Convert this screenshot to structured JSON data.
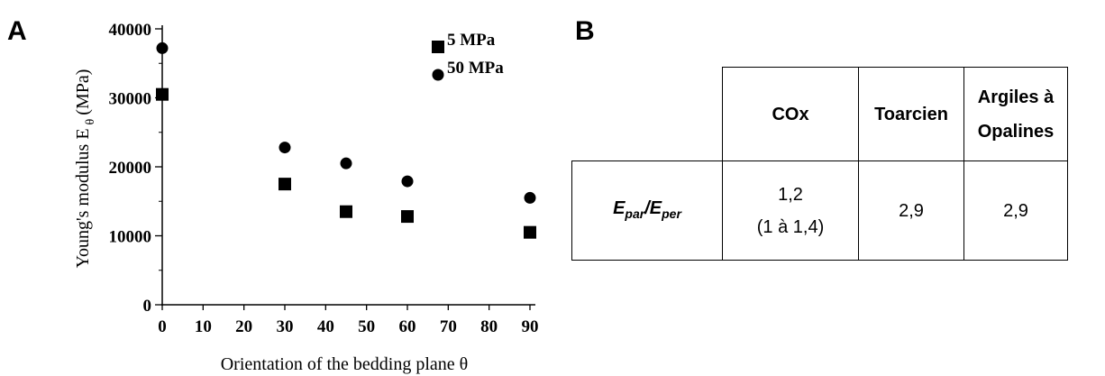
{
  "panels": {
    "a": "A",
    "b": "B"
  },
  "chart_data": {
    "type": "scatter",
    "ylabel_main": "Young's modulus E",
    "ylabel_sub": "θ",
    "ylabel_unit": "(MPa)",
    "xlabel": "Orientation of the bedding plane θ",
    "xlim": [
      0,
      90
    ],
    "ylim": [
      0,
      40000
    ],
    "x_ticks": [
      "0",
      "10",
      "20",
      "30",
      "40",
      "50",
      "60",
      "70",
      "80",
      "90"
    ],
    "y_ticks": [
      "0",
      "10000",
      "20000",
      "30000",
      "40000"
    ],
    "grid": false,
    "legend_position": "top-right",
    "series": [
      {
        "name": "5 MPa",
        "marker": "square",
        "x": [
          0,
          30,
          45,
          60,
          90
        ],
        "y": [
          30500,
          17500,
          13500,
          12800,
          10500
        ]
      },
      {
        "name": "50 MPa",
        "marker": "circle",
        "x": [
          0,
          30,
          45,
          60,
          90
        ],
        "y": [
          37200,
          22800,
          20500,
          17900,
          15500
        ]
      }
    ]
  },
  "table": {
    "headers": [
      "COx",
      "Toarcien",
      "Argiles à Opalines"
    ],
    "row_label": {
      "e1": "E",
      "s1": "par",
      "slash": "/",
      "e2": "E",
      "s2": "per"
    },
    "cells": [
      {
        "line1": "1,2",
        "line2": "(1 à 1,4)"
      },
      {
        "line1": "2,9"
      },
      {
        "line1": "2,9"
      }
    ]
  }
}
